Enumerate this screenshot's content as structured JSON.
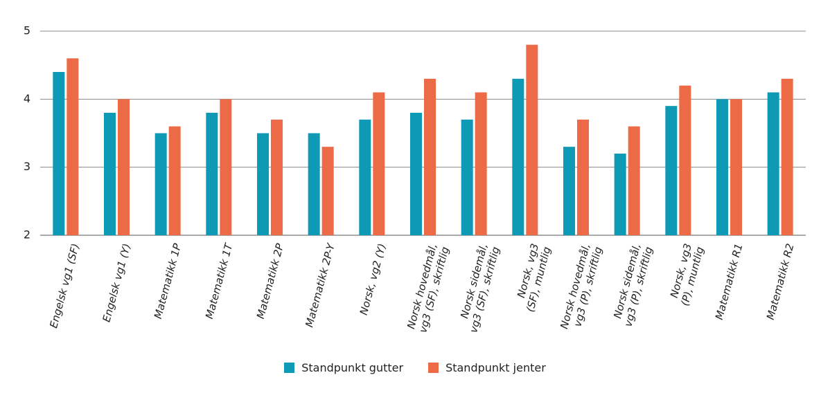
{
  "chart_data": {
    "type": "bar",
    "categories": [
      "Engelsk vg1 (SF)",
      "Engelsk vg1 (Y)",
      "Matematikk 1P",
      "Matematikk 1T",
      "Matematikk 2P",
      "Matematikk 2P-Y",
      "Norsk, vg2 (Y)",
      "Norsk hovedmål,\nvg3 (SF), skriftlig",
      "Norsk sidemål,\nvg3 (SF), skriftlig",
      "Norsk, vg3\n(SF), muntlig",
      "Norsk hovedmål,\nvg3 (P), skriftlig",
      "Norsk sidemål,\nvg3 (P), skriftlig",
      "Norsk, vg3\n(P), muntlig",
      "Matematikk R1",
      "Matematikk R2"
    ],
    "series": [
      {
        "name": "Standpunkt gutter",
        "color": "#0e9ab5",
        "values": [
          4.4,
          3.8,
          3.5,
          3.8,
          3.5,
          3.5,
          3.7,
          3.8,
          3.7,
          4.3,
          3.3,
          3.2,
          3.9,
          4.0,
          4.1
        ]
      },
      {
        "name": "Standpunkt jenter",
        "color": "#ec6a45",
        "values": [
          4.6,
          4.0,
          3.6,
          4.0,
          3.7,
          3.3,
          4.1,
          4.3,
          4.1,
          4.8,
          3.7,
          3.6,
          4.2,
          4.0,
          4.3
        ]
      }
    ],
    "ylim": [
      2,
      5
    ],
    "yticks": [
      2,
      3,
      4,
      5
    ],
    "grid": true
  }
}
